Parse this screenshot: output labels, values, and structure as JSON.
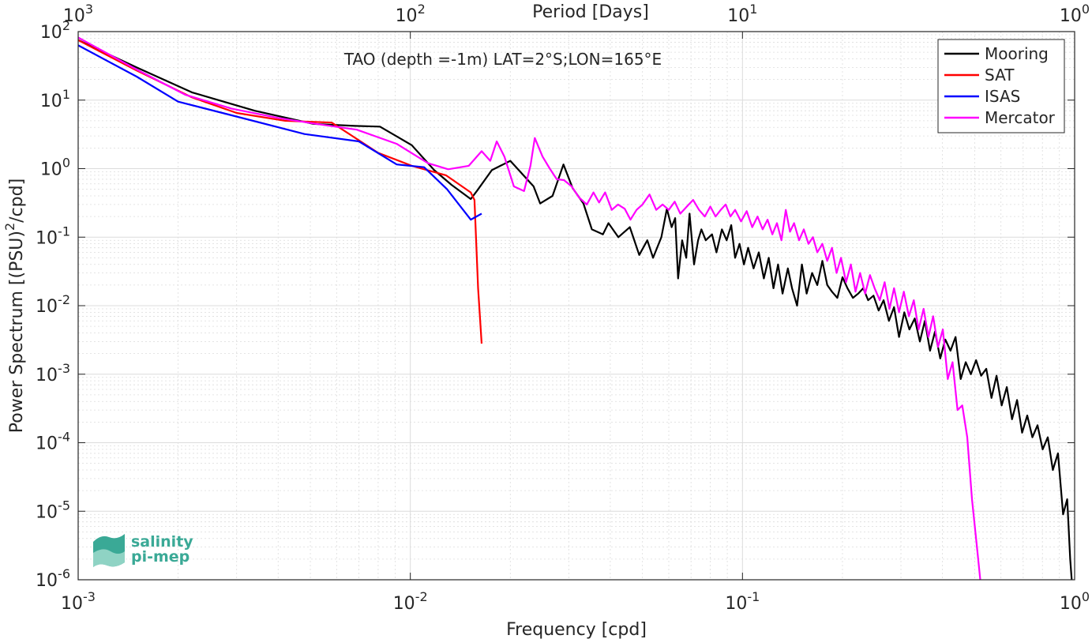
{
  "chart_data": {
    "type": "line",
    "title": "TAO (depth =-1m) LAT=2°S;LON=165°E",
    "xlabel": "Frequency [cpd]",
    "ylabel": "Power Spectrum [(PSU)²/cpd]",
    "top_xlabel": "Period [Days]",
    "xscale": "log",
    "yscale": "log",
    "xlim": [
      0.001,
      1
    ],
    "ylim": [
      1e-06,
      100
    ],
    "grid": true,
    "legend_position": "top-right",
    "x_ticks": [
      {
        "value": 0.001,
        "base": "10",
        "exp": "-3"
      },
      {
        "value": 0.01,
        "base": "10",
        "exp": "-2"
      },
      {
        "value": 0.1,
        "base": "10",
        "exp": "-1"
      },
      {
        "value": 1,
        "base": "10",
        "exp": "0"
      }
    ],
    "top_ticks": [
      {
        "value": 0.001,
        "base": "10",
        "exp": "3"
      },
      {
        "value": 0.01,
        "base": "10",
        "exp": "2"
      },
      {
        "value": 0.1,
        "base": "10",
        "exp": "1"
      },
      {
        "value": 1,
        "base": "10",
        "exp": "0"
      }
    ],
    "y_ticks": [
      {
        "value": 100,
        "base": "10",
        "exp": "2"
      },
      {
        "value": 10,
        "base": "10",
        "exp": "1"
      },
      {
        "value": 1,
        "base": "10",
        "exp": "0"
      },
      {
        "value": 0.1,
        "base": "10",
        "exp": "-1"
      },
      {
        "value": 0.01,
        "base": "10",
        "exp": "-2"
      },
      {
        "value": 0.001,
        "base": "10",
        "exp": "-3"
      },
      {
        "value": 0.0001,
        "base": "10",
        "exp": "-4"
      },
      {
        "value": 1e-05,
        "base": "10",
        "exp": "-5"
      },
      {
        "value": 1e-06,
        "base": "10",
        "exp": "-6"
      }
    ],
    "series": [
      {
        "name": "Mooring",
        "color": "#000000",
        "points": [
          [
            0.001,
            75
          ],
          [
            0.0015,
            30
          ],
          [
            0.0022,
            13
          ],
          [
            0.0034,
            7
          ],
          [
            0.0051,
            4.5
          ],
          [
            0.0068,
            4.2
          ],
          [
            0.0081,
            4.1
          ],
          [
            0.0101,
            2.2
          ],
          [
            0.0118,
            0.95
          ],
          [
            0.0133,
            0.58
          ],
          [
            0.0152,
            0.36
          ],
          [
            0.0159,
            0.48
          ],
          [
            0.0176,
            0.95
          ],
          [
            0.02,
            1.3
          ],
          [
            0.0235,
            0.55
          ],
          [
            0.0246,
            0.31
          ],
          [
            0.0268,
            0.4
          ],
          [
            0.0289,
            1.15
          ],
          [
            0.0308,
            0.52
          ],
          [
            0.0332,
            0.31
          ],
          [
            0.0352,
            0.13
          ],
          [
            0.038,
            0.11
          ],
          [
            0.0395,
            0.16
          ],
          [
            0.0423,
            0.1
          ],
          [
            0.0458,
            0.14
          ],
          [
            0.0489,
            0.055
          ],
          [
            0.0517,
            0.09
          ],
          [
            0.0538,
            0.05
          ],
          [
            0.057,
            0.1
          ],
          [
            0.0592,
            0.26
          ],
          [
            0.0612,
            0.14
          ],
          [
            0.0627,
            0.19
          ],
          [
            0.064,
            0.025
          ],
          [
            0.0658,
            0.09
          ],
          [
            0.0677,
            0.05
          ],
          [
            0.0693,
            0.22
          ],
          [
            0.0715,
            0.04
          ],
          [
            0.0735,
            0.09
          ],
          [
            0.0752,
            0.13
          ],
          [
            0.0775,
            0.09
          ],
          [
            0.081,
            0.11
          ],
          [
            0.0835,
            0.06
          ],
          [
            0.0867,
            0.13
          ],
          [
            0.0896,
            0.09
          ],
          [
            0.0925,
            0.15
          ],
          [
            0.095,
            0.05
          ],
          [
            0.098,
            0.08
          ],
          [
            0.101,
            0.04
          ],
          [
            0.104,
            0.07
          ],
          [
            0.108,
            0.035
          ],
          [
            0.112,
            0.06
          ],
          [
            0.116,
            0.025
          ],
          [
            0.12,
            0.05
          ],
          [
            0.124,
            0.018
          ],
          [
            0.128,
            0.04
          ],
          [
            0.132,
            0.015
          ],
          [
            0.137,
            0.035
          ],
          [
            0.141,
            0.018
          ],
          [
            0.146,
            0.01
          ],
          [
            0.151,
            0.04
          ],
          [
            0.156,
            0.015
          ],
          [
            0.162,
            0.03
          ],
          [
            0.168,
            0.02
          ],
          [
            0.174,
            0.045
          ],
          [
            0.18,
            0.02
          ],
          [
            0.186,
            0.016
          ],
          [
            0.193,
            0.013
          ],
          [
            0.2,
            0.026
          ],
          [
            0.207,
            0.018
          ],
          [
            0.215,
            0.013
          ],
          [
            0.223,
            0.015
          ],
          [
            0.231,
            0.018
          ],
          [
            0.239,
            0.012
          ],
          [
            0.248,
            0.014
          ],
          [
            0.257,
            0.0085
          ],
          [
            0.266,
            0.012
          ],
          [
            0.276,
            0.006
          ],
          [
            0.286,
            0.0095
          ],
          [
            0.296,
            0.0035
          ],
          [
            0.307,
            0.008
          ],
          [
            0.318,
            0.0045
          ],
          [
            0.33,
            0.0065
          ],
          [
            0.342,
            0.003
          ],
          [
            0.354,
            0.006
          ],
          [
            0.367,
            0.0022
          ],
          [
            0.38,
            0.0042
          ],
          [
            0.394,
            0.0017
          ],
          [
            0.408,
            0.0032
          ],
          [
            0.423,
            0.0022
          ],
          [
            0.438,
            0.0035
          ],
          [
            0.454,
            0.00085
          ],
          [
            0.47,
            0.0015
          ],
          [
            0.487,
            0.001
          ],
          [
            0.505,
            0.0016
          ],
          [
            0.523,
            0.00095
          ],
          [
            0.542,
            0.0012
          ],
          [
            0.562,
            0.00045
          ],
          [
            0.582,
            0.00095
          ],
          [
            0.603,
            0.00035
          ],
          [
            0.625,
            0.00065
          ],
          [
            0.648,
            0.00022
          ],
          [
            0.671,
            0.00042
          ],
          [
            0.695,
            0.00014
          ],
          [
            0.72,
            0.00025
          ],
          [
            0.746,
            0.00012
          ],
          [
            0.773,
            0.00018
          ],
          [
            0.801,
            8e-05
          ],
          [
            0.83,
            0.00012
          ],
          [
            0.86,
            4e-05
          ],
          [
            0.891,
            7e-05
          ],
          [
            0.923,
            9e-06
          ],
          [
            0.95,
            1.5e-05
          ],
          [
            0.97,
            2e-06
          ],
          [
            0.98,
            1e-06
          ]
        ]
      },
      {
        "name": "SAT",
        "color": "#ff0000",
        "points": [
          [
            0.001,
            75
          ],
          [
            0.0015,
            27
          ],
          [
            0.0022,
            11
          ],
          [
            0.003,
            6.5
          ],
          [
            0.0042,
            5
          ],
          [
            0.0058,
            4.7
          ],
          [
            0.008,
            1.7
          ],
          [
            0.0101,
            1.1
          ],
          [
            0.0128,
            0.8
          ],
          [
            0.0152,
            0.45
          ],
          [
            0.0156,
            0.35
          ],
          [
            0.016,
            0.018
          ],
          [
            0.0164,
            0.0028
          ]
        ]
      },
      {
        "name": "ISAS",
        "color": "#0000ff",
        "points": [
          [
            0.001,
            63
          ],
          [
            0.0015,
            22
          ],
          [
            0.002,
            9.5
          ],
          [
            0.0029,
            6
          ],
          [
            0.0048,
            3.2
          ],
          [
            0.007,
            2.5
          ],
          [
            0.0091,
            1.15
          ],
          [
            0.011,
            1.05
          ],
          [
            0.0129,
            0.5
          ],
          [
            0.0152,
            0.18
          ],
          [
            0.0164,
            0.22
          ]
        ]
      },
      {
        "name": "Mercator",
        "color": "#ff00ff",
        "points": [
          [
            0.001,
            82
          ],
          [
            0.0015,
            28
          ],
          [
            0.0021,
            12
          ],
          [
            0.0029,
            7.5
          ],
          [
            0.004,
            5.5
          ],
          [
            0.0052,
            4.5
          ],
          [
            0.0069,
            3.7
          ],
          [
            0.0091,
            2.3
          ],
          [
            0.0113,
            1.2
          ],
          [
            0.013,
            0.98
          ],
          [
            0.015,
            1.1
          ],
          [
            0.0164,
            1.8
          ],
          [
            0.0174,
            1.3
          ],
          [
            0.0182,
            2.5
          ],
          [
            0.0192,
            1.5
          ],
          [
            0.0205,
            0.55
          ],
          [
            0.022,
            0.47
          ],
          [
            0.023,
            1.1
          ],
          [
            0.0237,
            2.8
          ],
          [
            0.025,
            1.5
          ],
          [
            0.0263,
            1.0
          ],
          [
            0.0276,
            0.7
          ],
          [
            0.029,
            0.68
          ],
          [
            0.0306,
            0.55
          ],
          [
            0.0322,
            0.38
          ],
          [
            0.034,
            0.3
          ],
          [
            0.0356,
            0.45
          ],
          [
            0.037,
            0.32
          ],
          [
            0.0386,
            0.45
          ],
          [
            0.0404,
            0.25
          ],
          [
            0.0422,
            0.3
          ],
          [
            0.0442,
            0.26
          ],
          [
            0.046,
            0.18
          ],
          [
            0.048,
            0.25
          ],
          [
            0.05,
            0.3
          ],
          [
            0.0525,
            0.42
          ],
          [
            0.055,
            0.25
          ],
          [
            0.0575,
            0.3
          ],
          [
            0.06,
            0.25
          ],
          [
            0.0625,
            0.33
          ],
          [
            0.065,
            0.22
          ],
          [
            0.068,
            0.28
          ],
          [
            0.071,
            0.35
          ],
          [
            0.074,
            0.25
          ],
          [
            0.077,
            0.2
          ],
          [
            0.08,
            0.28
          ],
          [
            0.083,
            0.2
          ],
          [
            0.086,
            0.25
          ],
          [
            0.089,
            0.3
          ],
          [
            0.092,
            0.2
          ],
          [
            0.095,
            0.25
          ],
          [
            0.099,
            0.17
          ],
          [
            0.103,
            0.24
          ],
          [
            0.107,
            0.14
          ],
          [
            0.111,
            0.2
          ],
          [
            0.115,
            0.13
          ],
          [
            0.119,
            0.18
          ],
          [
            0.123,
            0.11
          ],
          [
            0.127,
            0.16
          ],
          [
            0.131,
            0.09
          ],
          [
            0.135,
            0.25
          ],
          [
            0.139,
            0.12
          ],
          [
            0.143,
            0.16
          ],
          [
            0.148,
            0.09
          ],
          [
            0.153,
            0.13
          ],
          [
            0.158,
            0.08
          ],
          [
            0.163,
            0.1
          ],
          [
            0.168,
            0.06
          ],
          [
            0.174,
            0.08
          ],
          [
            0.18,
            0.045
          ],
          [
            0.186,
            0.07
          ],
          [
            0.192,
            0.03
          ],
          [
            0.198,
            0.05
          ],
          [
            0.205,
            0.022
          ],
          [
            0.212,
            0.04
          ],
          [
            0.219,
            0.016
          ],
          [
            0.226,
            0.03
          ],
          [
            0.234,
            0.015
          ],
          [
            0.242,
            0.028
          ],
          [
            0.25,
            0.018
          ],
          [
            0.259,
            0.012
          ],
          [
            0.268,
            0.022
          ],
          [
            0.277,
            0.009
          ],
          [
            0.286,
            0.018
          ],
          [
            0.296,
            0.008
          ],
          [
            0.306,
            0.016
          ],
          [
            0.317,
            0.007
          ],
          [
            0.328,
            0.012
          ],
          [
            0.339,
            0.0045
          ],
          [
            0.351,
            0.009
          ],
          [
            0.363,
            0.0035
          ],
          [
            0.375,
            0.007
          ],
          [
            0.388,
            0.0025
          ],
          [
            0.401,
            0.0045
          ],
          [
            0.415,
            0.00085
          ],
          [
            0.429,
            0.0015
          ],
          [
            0.444,
            0.0003
          ],
          [
            0.459,
            0.00035
          ],
          [
            0.475,
            0.00012
          ],
          [
            0.491,
            1.5e-05
          ],
          [
            0.508,
            3e-06
          ],
          [
            0.52,
            1e-06
          ]
        ]
      }
    ]
  },
  "logo": {
    "line1": "salinity",
    "line2": "pi-mep"
  },
  "colors": {
    "axis": "#262626",
    "grid": "#dcdcdc",
    "background": "#ffffff",
    "logo_green": "#3aa996"
  }
}
